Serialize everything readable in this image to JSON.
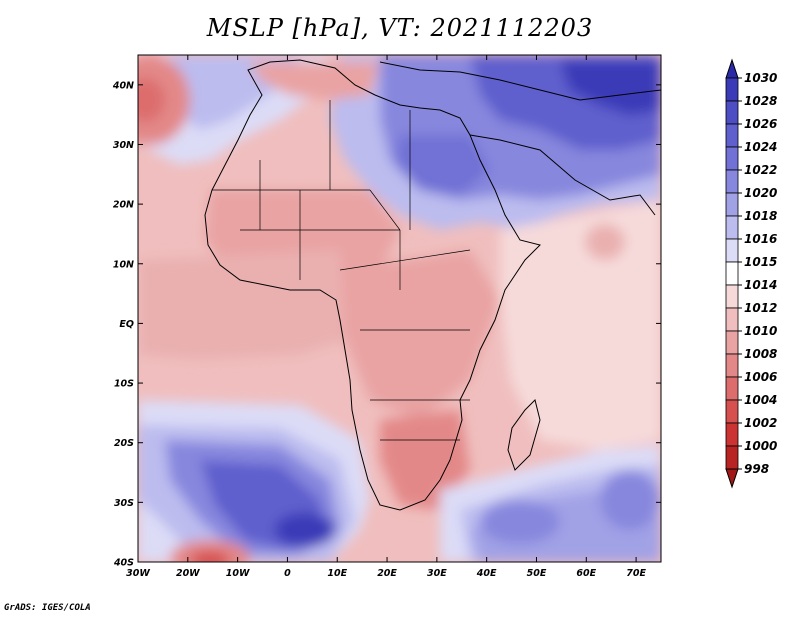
{
  "title": "MSLP [hPa], VT: 2021112203",
  "credit": "GrADS: IGES/COLA",
  "map": {
    "lon_range": [
      -30,
      75
    ],
    "lat_range": [
      -40,
      45
    ],
    "x_ticks": [
      "30W",
      "20W",
      "10W",
      "0",
      "10E",
      "20E",
      "30E",
      "40E",
      "50E",
      "60E",
      "70E"
    ],
    "y_ticks": [
      "40N",
      "30N",
      "20N",
      "10N",
      "EQ",
      "10S",
      "20S",
      "30S",
      "40S"
    ],
    "high_pressure_centers": [
      "Mediterranean/Turkey/Iran (~1026-1030 hPa)",
      "South Atlantic (~1024-1026 hPa)",
      "South Indian Ocean (~1020-1022 hPa)",
      "Egypt/Libya (~1020 hPa)"
    ],
    "low_pressure_centers": [
      "North Atlantic off Morocco (~1006 hPa)",
      "South Atlantic SW of Cape (~1004 hPa)",
      "Southern Africa interior (~1008 hPa)"
    ]
  },
  "colorbar": {
    "levels": [
      "1030",
      "1028",
      "1026",
      "1024",
      "1022",
      "1020",
      "1018",
      "1016",
      "1015",
      "1014",
      "1012",
      "1010",
      "1008",
      "1006",
      "1004",
      "1002",
      "1000",
      "998"
    ],
    "colors": [
      "#2a2aa8",
      "#3b3bb8",
      "#4d4dc4",
      "#5f5fcd",
      "#7171d6",
      "#8787de",
      "#a1a1e6",
      "#bcbcef",
      "#dcdcf7",
      "#ffffff",
      "#f6dada",
      "#f0bebe",
      "#e9a3a3",
      "#e38888",
      "#dd6d6d",
      "#d65050",
      "#cc3434",
      "#b82424",
      "#a01818"
    ]
  }
}
